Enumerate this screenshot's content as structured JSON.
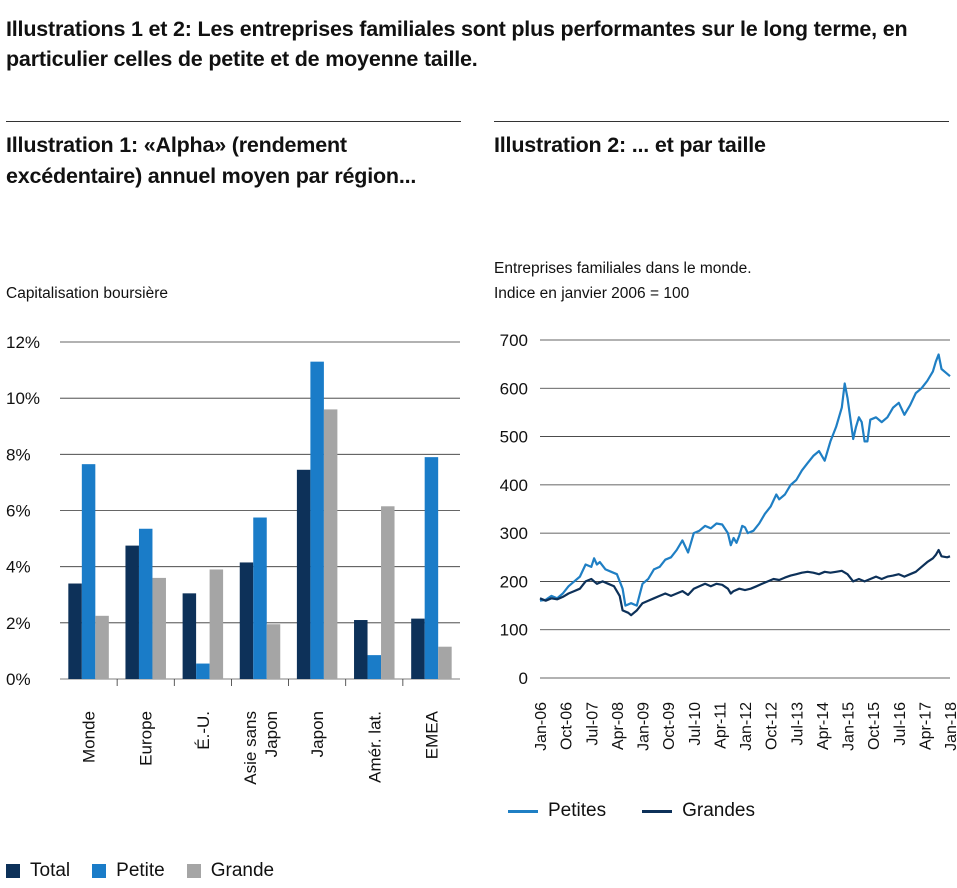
{
  "title": "Illustrations 1 et 2: Les entreprises familiales sont plus performantes sur le long terme, en particulier celles de petite et de moyenne taille.",
  "colors": {
    "total": "#0d3159",
    "petite": "#1a7cc8",
    "grande": "#a5a5a5",
    "petites_line": "#1f7fc4",
    "grandes_line": "#0d3159"
  },
  "chart1": {
    "title": "Illustration 1: «Alpha» (rendement excédentaire) annuel moyen par région...",
    "note": "Capitalisation boursière",
    "legend": [
      "Total",
      "Petite",
      "Grande"
    ]
  },
  "chart2": {
    "title": "Illustration 2: ... et par taille",
    "note1": "Entreprises familiales dans le monde.",
    "note2": "Indice en janvier 2006 = 100",
    "legend": [
      "Petites",
      "Grandes"
    ]
  },
  "chart_data": [
    {
      "type": "bar",
      "title": "Illustration 1: «Alpha» (rendement excédentaire) annuel moyen par région...",
      "ylabel": "Capitalisation boursière",
      "categories": [
        "Monde",
        "Europe",
        "É.-U.",
        "Asie sans Japon",
        "Japon",
        "Amér. lat.",
        "EMEA"
      ],
      "series": [
        {
          "name": "Total",
          "values": [
            3.4,
            4.75,
            3.05,
            4.15,
            7.45,
            2.1,
            2.15
          ]
        },
        {
          "name": "Petite",
          "values": [
            7.65,
            5.35,
            0.55,
            5.75,
            11.3,
            0.85,
            7.9
          ]
        },
        {
          "name": "Grande",
          "values": [
            2.25,
            3.6,
            3.9,
            1.95,
            9.6,
            6.15,
            1.15
          ]
        }
      ],
      "yticks": [
        "0%",
        "2%",
        "4%",
        "6%",
        "8%",
        "10%",
        "12%"
      ],
      "ylim": [
        0,
        12
      ],
      "grid": true,
      "legend_position": "bottom"
    },
    {
      "type": "line",
      "title": "Illustration 2: ... et par taille",
      "subtitle": "Entreprises familiales dans le monde. Indice en janvier 2006 = 100",
      "x_ticks": [
        "Jan-06",
        "Oct-06",
        "Jul-07",
        "Apr-08",
        "Jan-09",
        "Oct-09",
        "Jul-10",
        "Apr-11",
        "Jan-12",
        "Oct-12",
        "Jul-13",
        "Apr-14",
        "Jan-15",
        "Oct-15",
        "Jul-16",
        "Apr-17",
        "Jan-18"
      ],
      "yticks": [
        "0",
        "100",
        "200",
        "300",
        "400",
        "500",
        "600",
        "700"
      ],
      "ylim": [
        0,
        700
      ],
      "grid": true,
      "legend_position": "bottom",
      "series": [
        {
          "name": "Petites",
          "points": [
            [
              0,
              160
            ],
            [
              2,
              162
            ],
            [
              4,
              170
            ],
            [
              6,
              165
            ],
            [
              8,
              175
            ],
            [
              10,
              190
            ],
            [
              12,
              200
            ],
            [
              14,
              210
            ],
            [
              16,
              235
            ],
            [
              18,
              230
            ],
            [
              19,
              248
            ],
            [
              20,
              235
            ],
            [
              21,
              240
            ],
            [
              23,
              225
            ],
            [
              25,
              220
            ],
            [
              27,
              215
            ],
            [
              29,
              185
            ],
            [
              30,
              150
            ],
            [
              32,
              155
            ],
            [
              34,
              150
            ],
            [
              36,
              195
            ],
            [
              38,
              205
            ],
            [
              40,
              225
            ],
            [
              42,
              230
            ],
            [
              44,
              245
            ],
            [
              46,
              250
            ],
            [
              48,
              265
            ],
            [
              50,
              285
            ],
            [
              52,
              260
            ],
            [
              54,
              300
            ],
            [
              56,
              305
            ],
            [
              58,
              315
            ],
            [
              60,
              310
            ],
            [
              62,
              320
            ],
            [
              64,
              318
            ],
            [
              66,
              300
            ],
            [
              67,
              275
            ],
            [
              68,
              290
            ],
            [
              69,
              280
            ],
            [
              70,
              295
            ],
            [
              71,
              315
            ],
            [
              72,
              312
            ],
            [
              73,
              300
            ],
            [
              75,
              305
            ],
            [
              77,
              320
            ],
            [
              79,
              340
            ],
            [
              81,
              355
            ],
            [
              83,
              380
            ],
            [
              84,
              370
            ],
            [
              86,
              380
            ],
            [
              88,
              400
            ],
            [
              90,
              410
            ],
            [
              92,
              430
            ],
            [
              94,
              445
            ],
            [
              96,
              460
            ],
            [
              98,
              470
            ],
            [
              100,
              450
            ],
            [
              102,
              490
            ],
            [
              104,
              520
            ],
            [
              106,
              560
            ],
            [
              107,
              610
            ],
            [
              108,
              580
            ],
            [
              110,
              495
            ],
            [
              111,
              520
            ],
            [
              112,
              540
            ],
            [
              113,
              530
            ],
            [
              114,
              490
            ],
            [
              115,
              490
            ],
            [
              116,
              535
            ],
            [
              118,
              540
            ],
            [
              120,
              530
            ],
            [
              122,
              540
            ],
            [
              124,
              560
            ],
            [
              126,
              570
            ],
            [
              128,
              545
            ],
            [
              130,
              565
            ],
            [
              132,
              590
            ],
            [
              134,
              600
            ],
            [
              136,
              615
            ],
            [
              138,
              635
            ],
            [
              139,
              655
            ],
            [
              140,
              670
            ],
            [
              141,
              640
            ],
            [
              143,
              630
            ],
            [
              144,
              625
            ]
          ]
        },
        {
          "name": "Grandes",
          "points": [
            [
              0,
              165
            ],
            [
              2,
              160
            ],
            [
              4,
              165
            ],
            [
              6,
              163
            ],
            [
              8,
              168
            ],
            [
              10,
              175
            ],
            [
              12,
              180
            ],
            [
              14,
              185
            ],
            [
              16,
              200
            ],
            [
              18,
              205
            ],
            [
              20,
              195
            ],
            [
              22,
              200
            ],
            [
              24,
              195
            ],
            [
              26,
              190
            ],
            [
              28,
              170
            ],
            [
              29,
              140
            ],
            [
              31,
              135
            ],
            [
              32,
              130
            ],
            [
              34,
              140
            ],
            [
              36,
              155
            ],
            [
              38,
              160
            ],
            [
              40,
              165
            ],
            [
              42,
              170
            ],
            [
              44,
              175
            ],
            [
              46,
              170
            ],
            [
              48,
              175
            ],
            [
              50,
              180
            ],
            [
              52,
              172
            ],
            [
              54,
              185
            ],
            [
              56,
              190
            ],
            [
              58,
              195
            ],
            [
              60,
              190
            ],
            [
              62,
              195
            ],
            [
              64,
              193
            ],
            [
              66,
              185
            ],
            [
              67,
              175
            ],
            [
              68,
              180
            ],
            [
              70,
              185
            ],
            [
              72,
              182
            ],
            [
              74,
              185
            ],
            [
              76,
              190
            ],
            [
              78,
              195
            ],
            [
              80,
              200
            ],
            [
              82,
              205
            ],
            [
              84,
              203
            ],
            [
              86,
              208
            ],
            [
              88,
              212
            ],
            [
              90,
              215
            ],
            [
              92,
              218
            ],
            [
              94,
              220
            ],
            [
              96,
              218
            ],
            [
              98,
              215
            ],
            [
              100,
              220
            ],
            [
              102,
              218
            ],
            [
              104,
              220
            ],
            [
              106,
              222
            ],
            [
              108,
              215
            ],
            [
              110,
              200
            ],
            [
              112,
              205
            ],
            [
              114,
              200
            ],
            [
              116,
              205
            ],
            [
              118,
              210
            ],
            [
              120,
              205
            ],
            [
              122,
              210
            ],
            [
              124,
              212
            ],
            [
              126,
              215
            ],
            [
              128,
              210
            ],
            [
              130,
              215
            ],
            [
              132,
              220
            ],
            [
              134,
              230
            ],
            [
              136,
              240
            ],
            [
              138,
              248
            ],
            [
              139,
              255
            ],
            [
              140,
              265
            ],
            [
              141,
              252
            ],
            [
              143,
              250
            ],
            [
              144,
              252
            ]
          ]
        }
      ]
    }
  ]
}
